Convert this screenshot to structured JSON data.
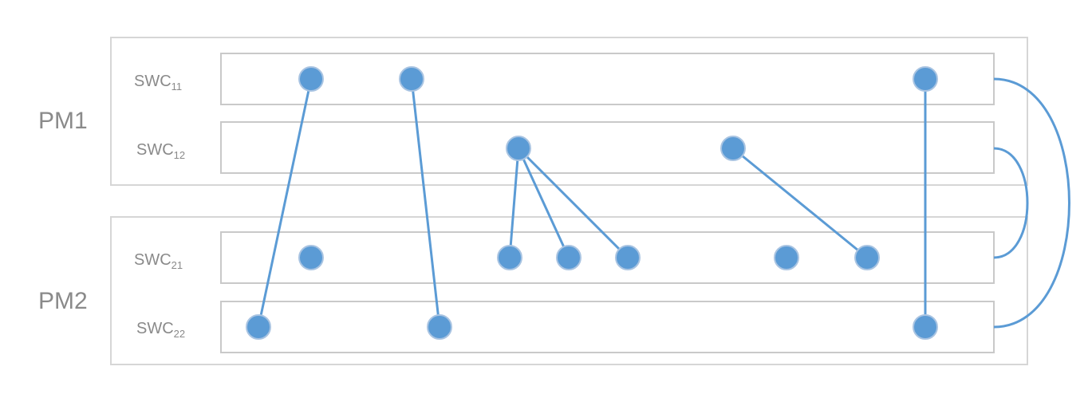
{
  "colors": {
    "accent": "#5b9bd5",
    "box_border": "#d6d6d6",
    "label_text": "#8a8a8a"
  },
  "pms": [
    {
      "id": "pm1",
      "label": "PM1"
    },
    {
      "id": "pm2",
      "label": "PM2"
    }
  ],
  "swcs": [
    {
      "id": "swc11",
      "base": "SWC",
      "sub": "11",
      "pm": "pm1"
    },
    {
      "id": "swc12",
      "base": "SWC",
      "sub": "12",
      "pm": "pm1"
    },
    {
      "id": "swc21",
      "base": "SWC",
      "sub": "21",
      "pm": "pm2"
    },
    {
      "id": "swc22",
      "base": "SWC",
      "sub": "22",
      "pm": "pm2"
    }
  ],
  "nodes": [
    {
      "id": "n11a",
      "swc": "swc11"
    },
    {
      "id": "n11b",
      "swc": "swc11"
    },
    {
      "id": "n11c",
      "swc": "swc11"
    },
    {
      "id": "n12a",
      "swc": "swc12"
    },
    {
      "id": "n12b",
      "swc": "swc12"
    },
    {
      "id": "n21a",
      "swc": "swc21"
    },
    {
      "id": "n21b",
      "swc": "swc21"
    },
    {
      "id": "n21c",
      "swc": "swc21"
    },
    {
      "id": "n21d",
      "swc": "swc21"
    },
    {
      "id": "n21e",
      "swc": "swc21"
    },
    {
      "id": "n21f",
      "swc": "swc21"
    },
    {
      "id": "n22a",
      "swc": "swc22"
    },
    {
      "id": "n22b",
      "swc": "swc22"
    },
    {
      "id": "n22c",
      "swc": "swc22"
    }
  ],
  "edges": [
    {
      "from": "n11a",
      "to": "n22a"
    },
    {
      "from": "n11b",
      "to": "n22b"
    },
    {
      "from": "n11c",
      "to": "n22c"
    },
    {
      "from": "n12a",
      "to": "n21b"
    },
    {
      "from": "n12a",
      "to": "n21c"
    },
    {
      "from": "n12a",
      "to": "n21d"
    },
    {
      "from": "n12b",
      "to": "n21f"
    }
  ],
  "swc_links": [
    {
      "from": "swc11",
      "to": "swc22"
    },
    {
      "from": "swc12",
      "to": "swc21"
    }
  ]
}
